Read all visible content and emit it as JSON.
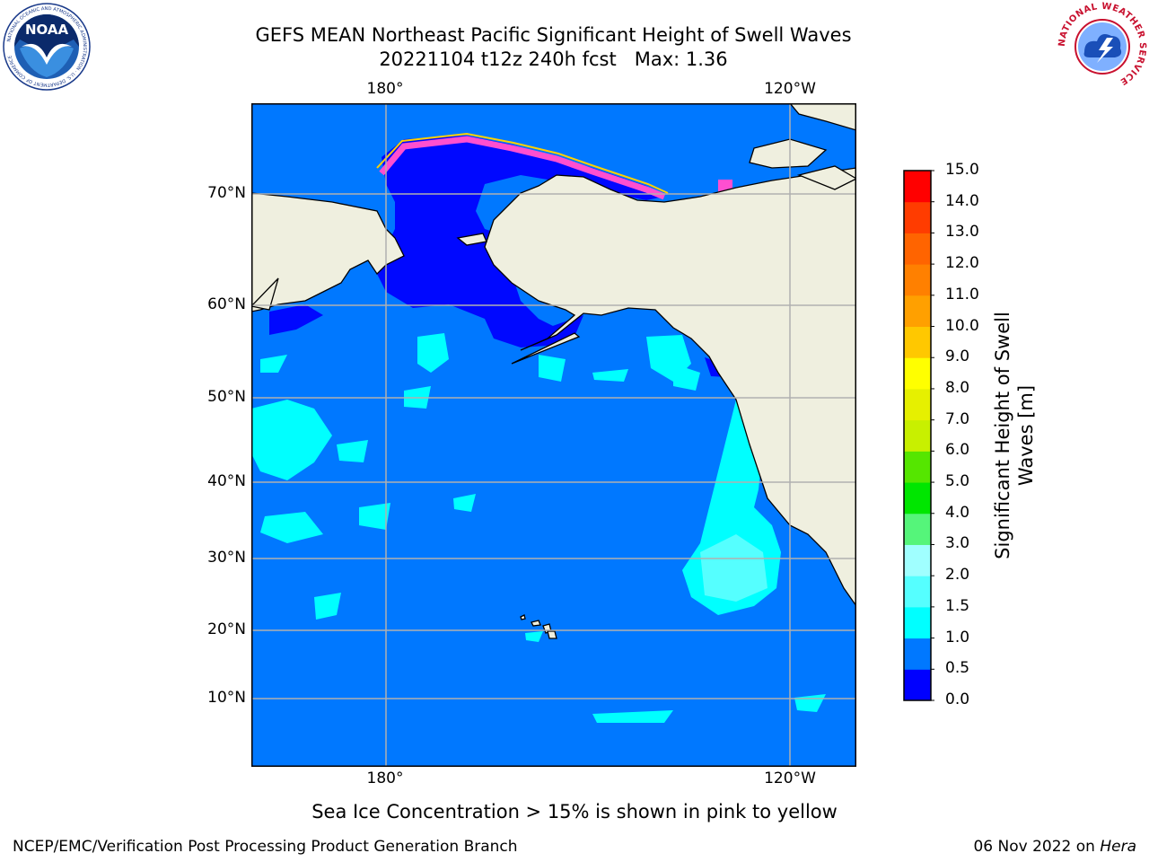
{
  "title": {
    "line1": "GEFS MEAN Northeast Pacific Significant Height of Swell Waves",
    "line2": "20221104 t12z 240h fcst   Max: 1.36"
  },
  "map": {
    "region": "Northeast Pacific",
    "lon_labels": [
      "180°",
      "120°W"
    ],
    "lat_labels": [
      "70°N",
      "60°N",
      "50°N",
      "40°N",
      "30°N",
      "20°N",
      "10°N"
    ],
    "colors": {
      "land": "#efefdf",
      "ocean_0_0_5": "#0008ff",
      "ocean_0_5_1_0": "#0078ff",
      "ocean_1_0_1_5": "#00ffff",
      "ice": "#ff4fd0",
      "grid": "#b0b0b0"
    }
  },
  "colorbar": {
    "label": "Significant Height of Swell Waves [m]",
    "ticks": [
      "15.0",
      "14.0",
      "13.0",
      "12.0",
      "11.0",
      "10.0",
      "9.0",
      "8.0",
      "7.0",
      "6.0",
      "5.0",
      "4.0",
      "3.0",
      "2.0",
      "1.5",
      "1.0",
      "0.5",
      "0.0"
    ],
    "colors": [
      "#0000ff",
      "#0078ff",
      "#00ffff",
      "#55ffff",
      "#a0ffff",
      "#55f57a",
      "#00e600",
      "#55e600",
      "#c8f000",
      "#e6f000",
      "#ffff00",
      "#ffc800",
      "#ffa000",
      "#ff8000",
      "#ff6400",
      "#ff3c00",
      "#ff0000"
    ]
  },
  "footnote": "Sea Ice Concentration > 15% is shown in pink to yellow",
  "credit": "NCEP/EMC/Verification Post Processing Product Generation Branch",
  "date": {
    "text": "06 Nov 2022 on",
    "machine": "Hera"
  },
  "logos": {
    "noaa": {
      "text": "NOAA",
      "ring_text": "NATIONAL OCEANIC AND ATMOSPHERIC ADMINISTRATION · U.S. DEPARTMENT OF COMMERCE"
    },
    "nws": {
      "ring_text": "NATIONAL WEATHER SERVICE"
    }
  }
}
